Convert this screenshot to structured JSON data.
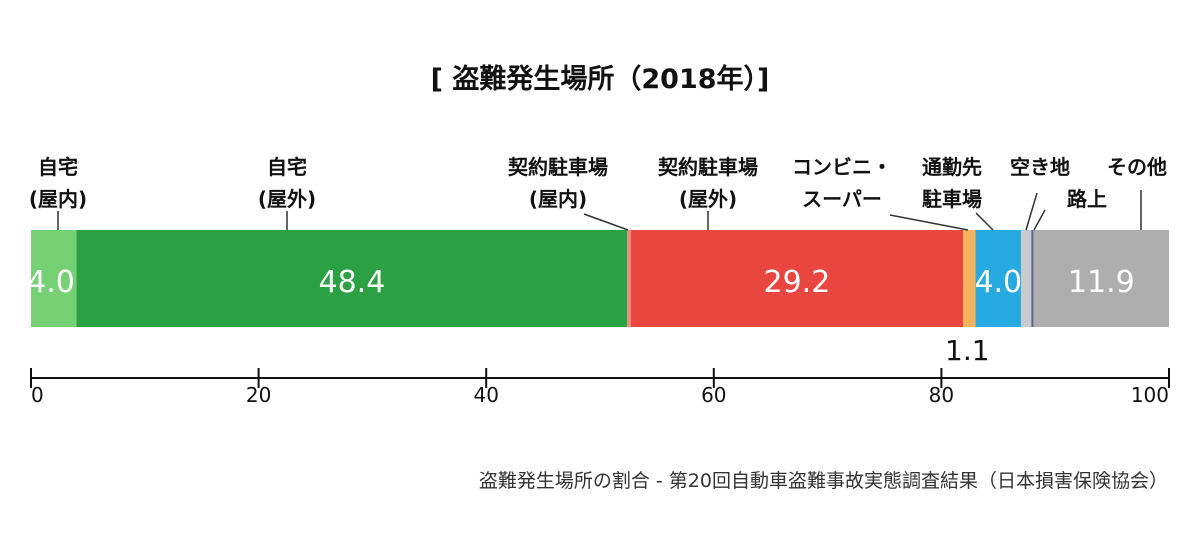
{
  "chart_data": {
    "type": "bar",
    "orientation": "horizontal-stacked",
    "title": "[ 盗難発生場所（2018年）]",
    "source": "盗難発生場所の割合 - 第20回自動車盗難事故実態調査結果（日本損害保険協会）",
    "categories": [
      "自宅（屋内）",
      "自宅（屋外）",
      "契約駐車場（屋内）",
      "契約駐車場（屋外）",
      "コンビニ・スーパー",
      "通勤先駐車場",
      "空き地",
      "路上",
      "その他"
    ],
    "series": [
      {
        "category": "自宅（屋内）",
        "label_lines": [
          "自宅",
          "(屋内)"
        ],
        "value": 4.0,
        "value_label": "4.0",
        "color": "#76d175"
      },
      {
        "category": "自宅（屋外）",
        "label_lines": [
          "自宅",
          "(屋外)"
        ],
        "value": 48.4,
        "value_label": "48.4",
        "color": "#2ca143"
      },
      {
        "category": "契約駐車場（屋内）",
        "label_lines": [
          "契約駐車場",
          "(屋内)"
        ],
        "value": 0.3,
        "value_label": "",
        "color": "#f08b7f"
      },
      {
        "category": "契約駐車場（屋外）",
        "label_lines": [
          "契約駐車場",
          "(屋外)"
        ],
        "value": 29.2,
        "value_label": "29.2",
        "color": "#ea4640"
      },
      {
        "category": "コンビニ・スーパー",
        "label_lines": [
          "コンビニ・",
          "スーパー"
        ],
        "value": 1.1,
        "value_label": "1.1",
        "color": "#f7b25f"
      },
      {
        "category": "通勤先駐車場",
        "label_lines": [
          "通勤先",
          "駐車場"
        ],
        "value": 4.0,
        "value_label": "4.0",
        "color": "#27a9e1"
      },
      {
        "category": "空き地",
        "label_lines": [
          "空き地"
        ],
        "value": 0.9,
        "value_label": "",
        "color": "#c9cacb"
      },
      {
        "category": "路上",
        "label_lines": [
          "路上"
        ],
        "value": 0.2,
        "value_label": "",
        "color": "#5b6c9a"
      },
      {
        "category": "その他",
        "label_lines": [
          "その他"
        ],
        "value": 11.9,
        "value_label": "11.9",
        "color": "#aeaeae"
      }
    ],
    "xlim": [
      0,
      100
    ],
    "xticks": [
      0,
      20,
      40,
      60,
      80,
      100
    ],
    "legend": "none",
    "grid": false
  }
}
